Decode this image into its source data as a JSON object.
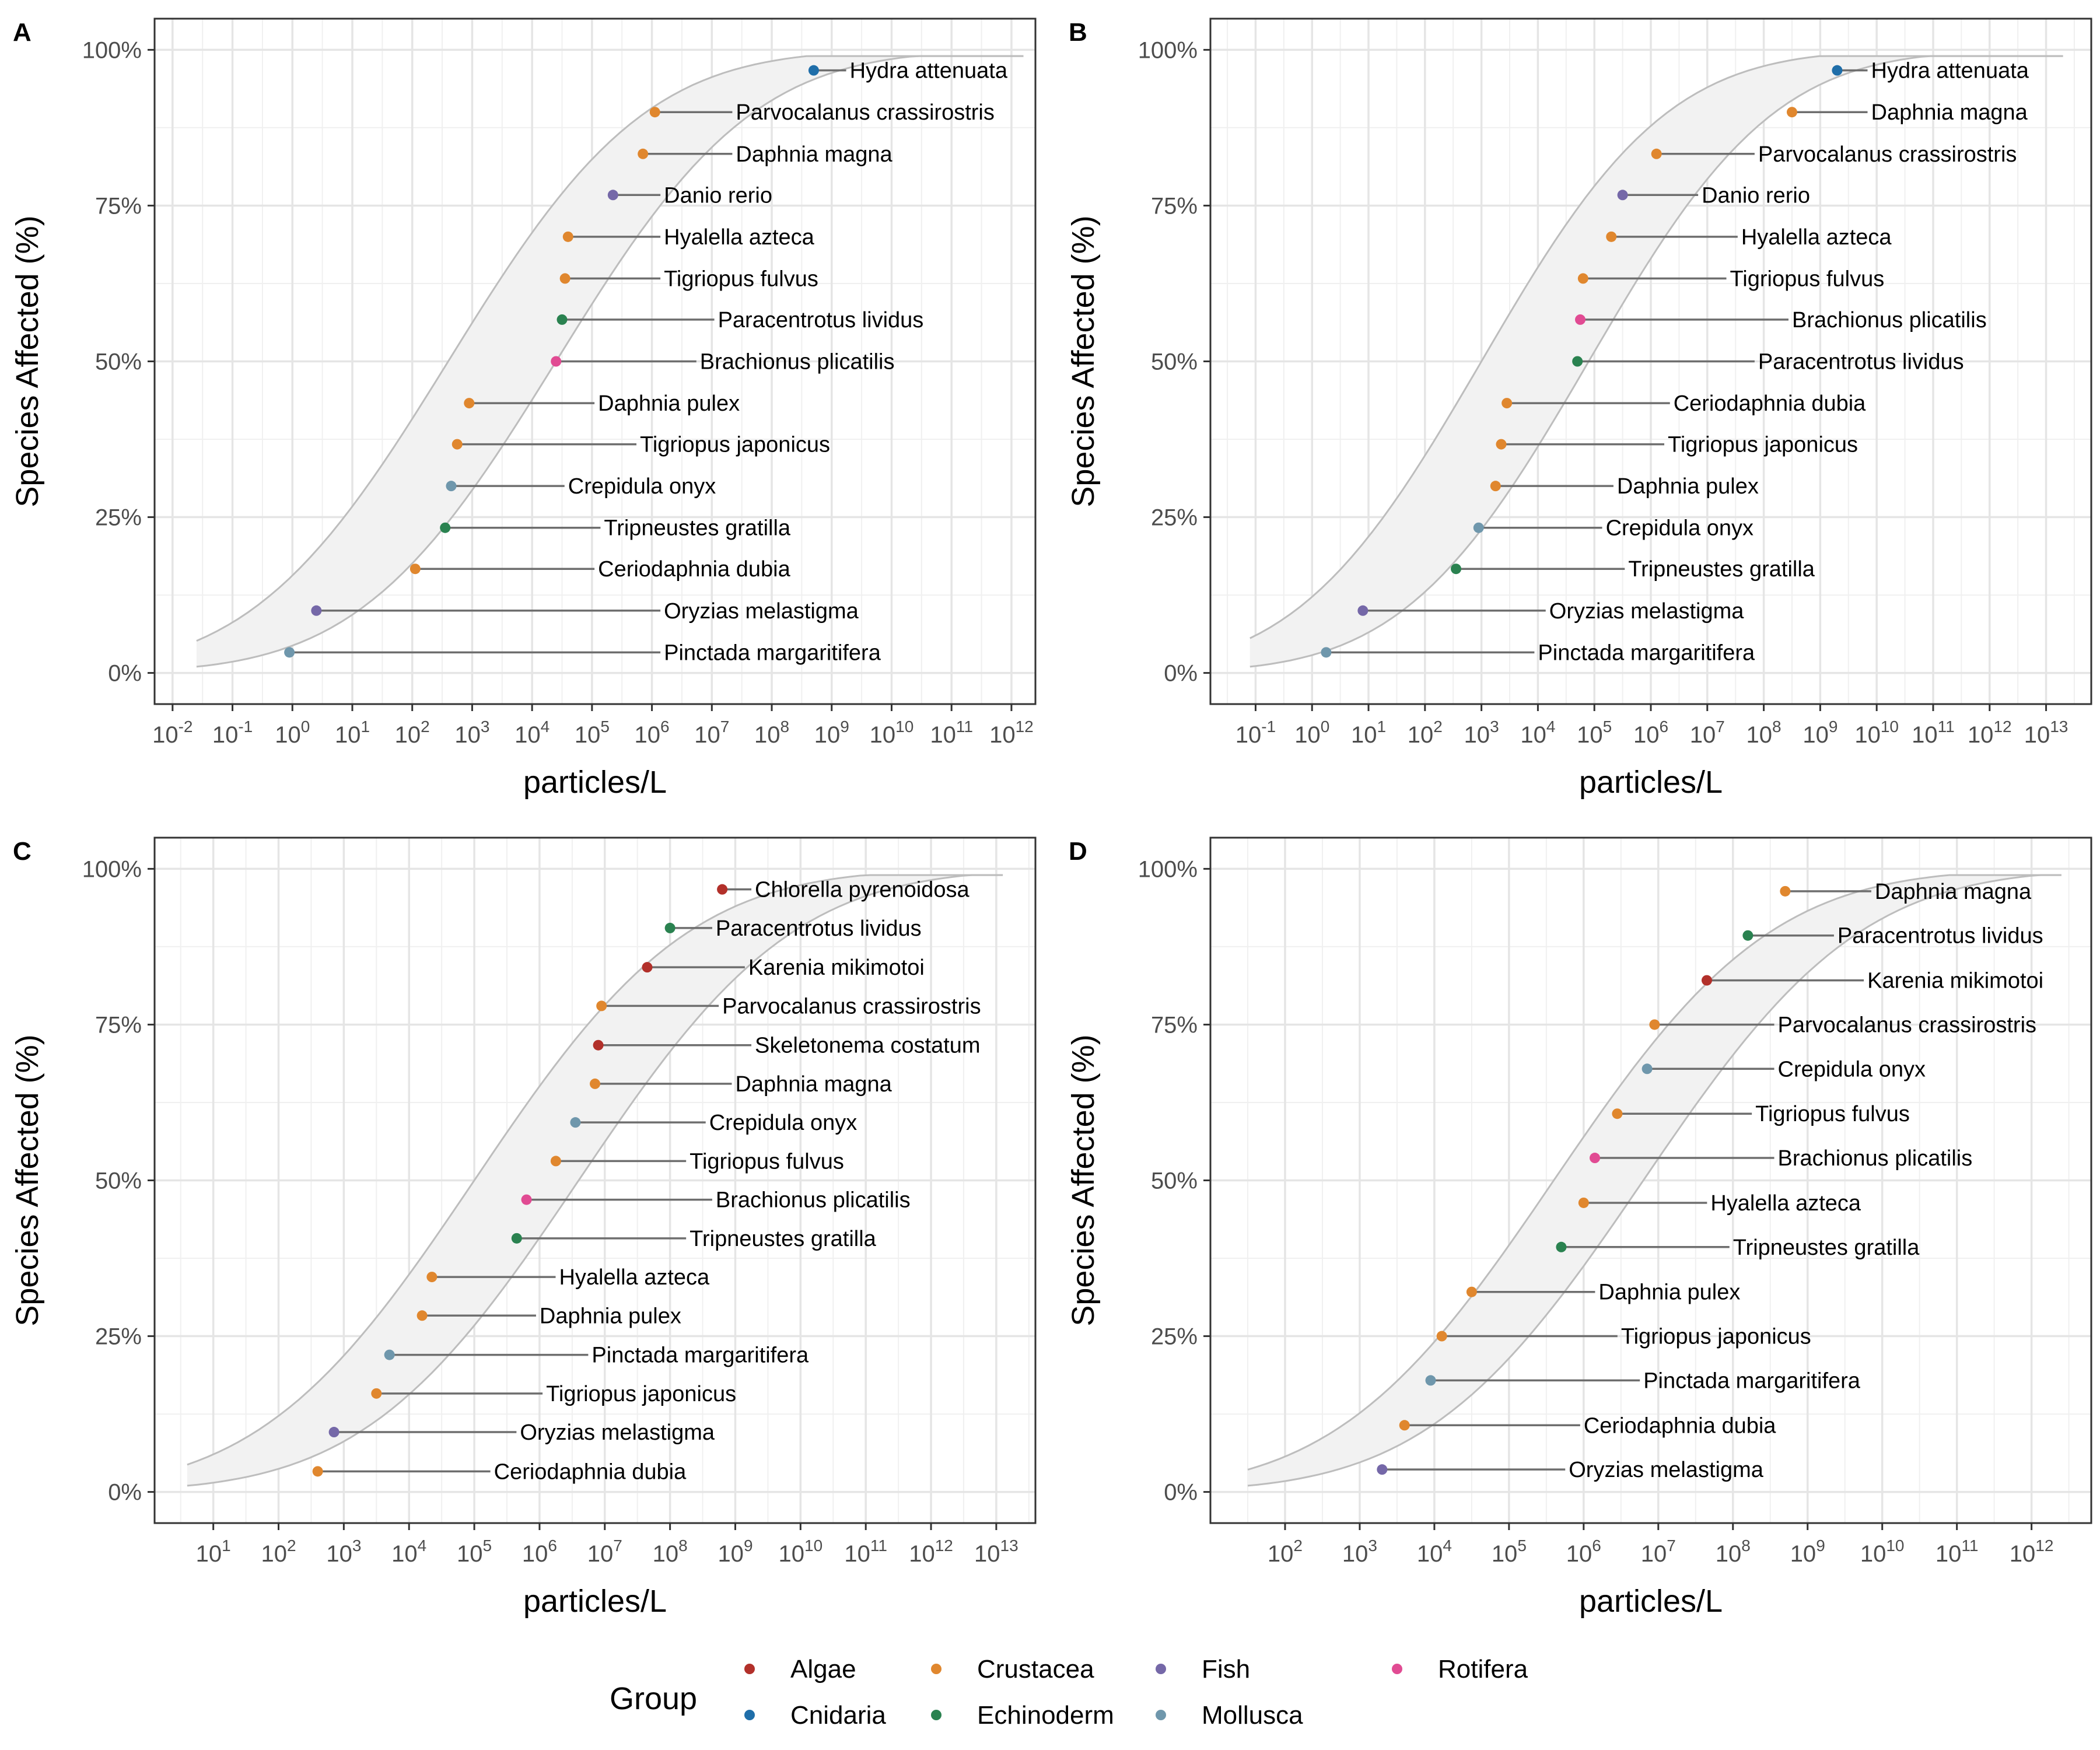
{
  "legend": {
    "title": "Group",
    "items": [
      {
        "name": "Algae",
        "color": "#B2302A"
      },
      {
        "name": "Cnidaria",
        "color": "#1F6EA9"
      },
      {
        "name": "Crustacea",
        "color": "#E0872E"
      },
      {
        "name": "Echinoderm",
        "color": "#2A8250"
      },
      {
        "name": "Fish",
        "color": "#7568A8"
      },
      {
        "name": "Mollusca",
        "color": "#6F97AC"
      },
      {
        "name": "Rotifera",
        "color": "#E14B93"
      }
    ]
  },
  "chart_data": [
    {
      "type": "scatter",
      "panel": "A",
      "xlabel": "particles/L",
      "ylabel": "Species Affected (%)",
      "x_scale": "log10",
      "xlim_log10": [
        -2.3,
        12.4
      ],
      "x_tick_exponents": [
        -2,
        -1,
        0,
        1,
        2,
        3,
        4,
        5,
        6,
        7,
        8,
        9,
        10,
        11,
        12
      ],
      "ylim": [
        -5,
        105
      ],
      "y_ticks": [
        "0%",
        "25%",
        "50%",
        "75%",
        "100%"
      ],
      "ribbon": {
        "log10_x_start": -1.6,
        "log10_x_end": 12.2,
        "lower_median_log10": 4.4,
        "upper_median_log10": 2.6
      },
      "points": [
        {
          "species": "Hydra attenuata",
          "group": "Cnidaria",
          "log10_x": 8.7,
          "y": 96.7,
          "label_log10_x": 9.3
        },
        {
          "species": "Parvocalanus crassirostris",
          "group": "Crustacea",
          "log10_x": 6.05,
          "y": 90.0,
          "label_log10_x": 7.4
        },
        {
          "species": "Daphnia magna",
          "group": "Crustacea",
          "log10_x": 5.85,
          "y": 83.3,
          "label_log10_x": 7.4
        },
        {
          "species": "Danio rerio",
          "group": "Fish",
          "log10_x": 5.35,
          "y": 76.7,
          "label_log10_x": 6.2
        },
        {
          "species": "Hyalella azteca",
          "group": "Crustacea",
          "log10_x": 4.6,
          "y": 70.0,
          "label_log10_x": 6.2
        },
        {
          "species": "Tigriopus fulvus",
          "group": "Crustacea",
          "log10_x": 4.55,
          "y": 63.3,
          "label_log10_x": 6.2
        },
        {
          "species": "Paracentrotus lividus",
          "group": "Echinoderm",
          "log10_x": 4.5,
          "y": 56.7,
          "label_log10_x": 7.1
        },
        {
          "species": "Brachionus plicatilis",
          "group": "Rotifera",
          "log10_x": 4.4,
          "y": 50.0,
          "label_log10_x": 6.8
        },
        {
          "species": "Daphnia pulex",
          "group": "Crustacea",
          "log10_x": 2.95,
          "y": 43.3,
          "label_log10_x": 5.1
        },
        {
          "species": "Tigriopus japonicus",
          "group": "Crustacea",
          "log10_x": 2.75,
          "y": 36.7,
          "label_log10_x": 5.8
        },
        {
          "species": "Crepidula onyx",
          "group": "Mollusca",
          "log10_x": 2.65,
          "y": 30.0,
          "label_log10_x": 4.6
        },
        {
          "species": "Tripneustes gratilla",
          "group": "Echinoderm",
          "log10_x": 2.55,
          "y": 23.3,
          "label_log10_x": 5.2
        },
        {
          "species": "Ceriodaphnia dubia",
          "group": "Crustacea",
          "log10_x": 2.05,
          "y": 16.7,
          "label_log10_x": 5.1
        },
        {
          "species": "Oryzias melastigma",
          "group": "Fish",
          "log10_x": 0.4,
          "y": 10.0,
          "label_log10_x": 6.2
        },
        {
          "species": "Pinctada margaritifera",
          "group": "Mollusca",
          "log10_x": -0.05,
          "y": 3.3,
          "label_log10_x": 6.2
        }
      ]
    },
    {
      "type": "scatter",
      "panel": "B",
      "xlabel": "particles/L",
      "ylabel": "Species Affected (%)",
      "x_scale": "log10",
      "xlim_log10": [
        -1.8,
        13.8
      ],
      "x_tick_exponents": [
        -1,
        0,
        1,
        2,
        3,
        4,
        5,
        6,
        7,
        8,
        9,
        10,
        11,
        12,
        13
      ],
      "ylim": [
        -5,
        105
      ],
      "y_ticks": [
        "0%",
        "25%",
        "50%",
        "75%",
        "100%"
      ],
      "ribbon": {
        "log10_x_start": -1.1,
        "log10_x_end": 13.3,
        "lower_median_log10": 4.9,
        "upper_median_log10": 3.0
      },
      "points": [
        {
          "species": "Hydra attenuata",
          "group": "Cnidaria",
          "log10_x": 9.3,
          "y": 96.7,
          "label_log10_x": 9.9
        },
        {
          "species": "Daphnia magna",
          "group": "Crustacea",
          "log10_x": 8.5,
          "y": 90.0,
          "label_log10_x": 9.9
        },
        {
          "species": "Parvocalanus crassirostris",
          "group": "Crustacea",
          "log10_x": 6.1,
          "y": 83.3,
          "label_log10_x": 7.9
        },
        {
          "species": "Danio rerio",
          "group": "Fish",
          "log10_x": 5.5,
          "y": 76.7,
          "label_log10_x": 6.9
        },
        {
          "species": "Hyalella azteca",
          "group": "Crustacea",
          "log10_x": 5.3,
          "y": 70.0,
          "label_log10_x": 7.6
        },
        {
          "species": "Tigriopus fulvus",
          "group": "Crustacea",
          "log10_x": 4.8,
          "y": 63.3,
          "label_log10_x": 7.4
        },
        {
          "species": "Brachionus plicatilis",
          "group": "Rotifera",
          "log10_x": 4.75,
          "y": 56.7,
          "label_log10_x": 8.5
        },
        {
          "species": "Paracentrotus lividus",
          "group": "Echinoderm",
          "log10_x": 4.7,
          "y": 50.0,
          "label_log10_x": 7.9
        },
        {
          "species": "Ceriodaphnia dubia",
          "group": "Crustacea",
          "log10_x": 3.45,
          "y": 43.3,
          "label_log10_x": 6.4
        },
        {
          "species": "Tigriopus japonicus",
          "group": "Crustacea",
          "log10_x": 3.35,
          "y": 36.7,
          "label_log10_x": 6.3
        },
        {
          "species": "Daphnia pulex",
          "group": "Crustacea",
          "log10_x": 3.25,
          "y": 30.0,
          "label_log10_x": 5.4
        },
        {
          "species": "Crepidula onyx",
          "group": "Mollusca",
          "log10_x": 2.95,
          "y": 23.3,
          "label_log10_x": 5.2
        },
        {
          "species": "Tripneustes gratilla",
          "group": "Echinoderm",
          "log10_x": 2.55,
          "y": 16.7,
          "label_log10_x": 5.6
        },
        {
          "species": "Oryzias melastigma",
          "group": "Fish",
          "log10_x": 0.9,
          "y": 10.0,
          "label_log10_x": 4.2
        },
        {
          "species": "Pinctada margaritifera",
          "group": "Mollusca",
          "log10_x": 0.25,
          "y": 3.3,
          "label_log10_x": 4.0
        }
      ]
    },
    {
      "type": "scatter",
      "panel": "C",
      "xlabel": "particles/L",
      "ylabel": "Species Affected (%)",
      "x_scale": "log10",
      "xlim_log10": [
        0.1,
        13.6
      ],
      "x_tick_exponents": [
        1,
        2,
        3,
        4,
        5,
        6,
        7,
        8,
        9,
        10,
        11,
        12,
        13
      ],
      "ylim": [
        -5,
        105
      ],
      "y_ticks": [
        "0%",
        "25%",
        "50%",
        "75%",
        "100%"
      ],
      "ribbon": {
        "log10_x_start": 0.6,
        "log10_x_end": 13.1,
        "lower_median_log10": 6.6,
        "upper_median_log10": 5.0
      },
      "points": [
        {
          "species": "Chlorella pyrenoidosa",
          "group": "Algae",
          "log10_x": 8.8,
          "y": 96.7,
          "label_log10_x": 9.3
        },
        {
          "species": "Paracentrotus lividus",
          "group": "Echinoderm",
          "log10_x": 8.0,
          "y": 90.5,
          "label_log10_x": 8.7
        },
        {
          "species": "Karenia mikimotoi",
          "group": "Algae",
          "log10_x": 7.65,
          "y": 84.2,
          "label_log10_x": 9.2
        },
        {
          "species": "Parvocalanus crassirostris",
          "group": "Crustacea",
          "log10_x": 6.95,
          "y": 78.0,
          "label_log10_x": 8.8
        },
        {
          "species": "Skeletonema costatum",
          "group": "Algae",
          "log10_x": 6.9,
          "y": 71.7,
          "label_log10_x": 9.3
        },
        {
          "species": "Daphnia magna",
          "group": "Crustacea",
          "log10_x": 6.85,
          "y": 65.5,
          "label_log10_x": 9.0
        },
        {
          "species": "Crepidula onyx",
          "group": "Mollusca",
          "log10_x": 6.55,
          "y": 59.3,
          "label_log10_x": 8.6
        },
        {
          "species": "Tigriopus fulvus",
          "group": "Crustacea",
          "log10_x": 6.25,
          "y": 53.1,
          "label_log10_x": 8.3
        },
        {
          "species": "Brachionus plicatilis",
          "group": "Rotifera",
          "log10_x": 5.8,
          "y": 46.9,
          "label_log10_x": 8.7
        },
        {
          "species": "Tripneustes gratilla",
          "group": "Echinoderm",
          "log10_x": 5.65,
          "y": 40.7,
          "label_log10_x": 8.3
        },
        {
          "species": "Hyalella azteca",
          "group": "Crustacea",
          "log10_x": 4.35,
          "y": 34.5,
          "label_log10_x": 6.3
        },
        {
          "species": "Daphnia pulex",
          "group": "Crustacea",
          "log10_x": 4.2,
          "y": 28.3,
          "label_log10_x": 6.0
        },
        {
          "species": "Pinctada margaritifera",
          "group": "Mollusca",
          "log10_x": 3.7,
          "y": 22.0,
          "label_log10_x": 6.8
        },
        {
          "species": "Tigriopus japonicus",
          "group": "Crustacea",
          "log10_x": 3.5,
          "y": 15.8,
          "label_log10_x": 6.1
        },
        {
          "species": "Oryzias melastigma",
          "group": "Fish",
          "log10_x": 2.85,
          "y": 9.6,
          "label_log10_x": 5.7
        },
        {
          "species": "Ceriodaphnia dubia",
          "group": "Crustacea",
          "log10_x": 2.6,
          "y": 3.3,
          "label_log10_x": 5.3
        }
      ]
    },
    {
      "type": "scatter",
      "panel": "D",
      "xlabel": "particles/L",
      "ylabel": "Species Affected (%)",
      "x_scale": "log10",
      "xlim_log10": [
        1.0,
        12.8
      ],
      "x_tick_exponents": [
        2,
        3,
        4,
        5,
        6,
        7,
        8,
        9,
        10,
        11,
        12
      ],
      "ylim": [
        -5,
        105
      ],
      "y_ticks": [
        "0%",
        "25%",
        "50%",
        "75%",
        "100%"
      ],
      "ribbon": {
        "log10_x_start": 1.5,
        "log10_x_end": 12.4,
        "lower_median_log10": 6.8,
        "upper_median_log10": 5.6
      },
      "points": [
        {
          "species": "Daphnia magna",
          "group": "Crustacea",
          "log10_x": 8.7,
          "y": 96.4,
          "label_log10_x": 9.9
        },
        {
          "species": "Paracentrotus lividus",
          "group": "Echinoderm",
          "log10_x": 8.2,
          "y": 89.3,
          "label_log10_x": 9.4
        },
        {
          "species": "Karenia mikimotoi",
          "group": "Algae",
          "log10_x": 7.65,
          "y": 82.1,
          "label_log10_x": 9.8
        },
        {
          "species": "Parvocalanus crassirostris",
          "group": "Crustacea",
          "log10_x": 6.95,
          "y": 75.0,
          "label_log10_x": 8.6
        },
        {
          "species": "Crepidula onyx",
          "group": "Mollusca",
          "log10_x": 6.85,
          "y": 67.9,
          "label_log10_x": 8.6
        },
        {
          "species": "Tigriopus fulvus",
          "group": "Crustacea",
          "log10_x": 6.45,
          "y": 60.7,
          "label_log10_x": 8.3
        },
        {
          "species": "Brachionus plicatilis",
          "group": "Rotifera",
          "log10_x": 6.15,
          "y": 53.6,
          "label_log10_x": 8.6
        },
        {
          "species": "Hyalella azteca",
          "group": "Crustacea",
          "log10_x": 6.0,
          "y": 46.4,
          "label_log10_x": 7.7
        },
        {
          "species": "Tripneustes gratilla",
          "group": "Echinoderm",
          "log10_x": 5.7,
          "y": 39.3,
          "label_log10_x": 8.0
        },
        {
          "species": "Daphnia pulex",
          "group": "Crustacea",
          "log10_x": 4.5,
          "y": 32.1,
          "label_log10_x": 6.2
        },
        {
          "species": "Tigriopus japonicus",
          "group": "Crustacea",
          "log10_x": 4.1,
          "y": 25.0,
          "label_log10_x": 6.5
        },
        {
          "species": "Pinctada margaritifera",
          "group": "Mollusca",
          "log10_x": 3.95,
          "y": 17.9,
          "label_log10_x": 6.8
        },
        {
          "species": "Ceriodaphnia dubia",
          "group": "Crustacea",
          "log10_x": 3.6,
          "y": 10.7,
          "label_log10_x": 6.0
        },
        {
          "species": "Oryzias melastigma",
          "group": "Fish",
          "log10_x": 3.3,
          "y": 3.6,
          "label_log10_x": 5.8
        }
      ]
    }
  ]
}
